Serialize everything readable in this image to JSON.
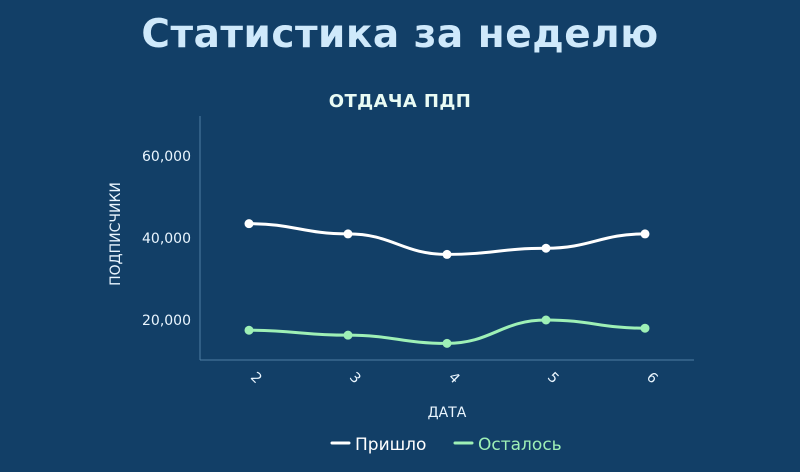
{
  "header": {
    "title": "Статистика за неделю"
  },
  "chart_data": {
    "type": "line",
    "title": "ОТДАЧА ПДП",
    "xlabel": "ДАТА",
    "ylabel": "ПОДПИСЧИКИ",
    "categories": [
      "2",
      "3",
      "4",
      "5",
      "6"
    ],
    "series": [
      {
        "name": "Пришло",
        "color": "#ffffff",
        "values": [
          43500,
          41000,
          36000,
          37500,
          41000
        ]
      },
      {
        "name": "Осталось",
        "color": "#9ef0b6",
        "values": [
          17500,
          16300,
          14300,
          20000,
          18000
        ]
      }
    ],
    "yticks": [
      "20,000",
      "40,000",
      "60,000"
    ],
    "ylim": [
      10000,
      70000
    ],
    "grid": false,
    "legend": "bottom-center",
    "smooth": true
  }
}
